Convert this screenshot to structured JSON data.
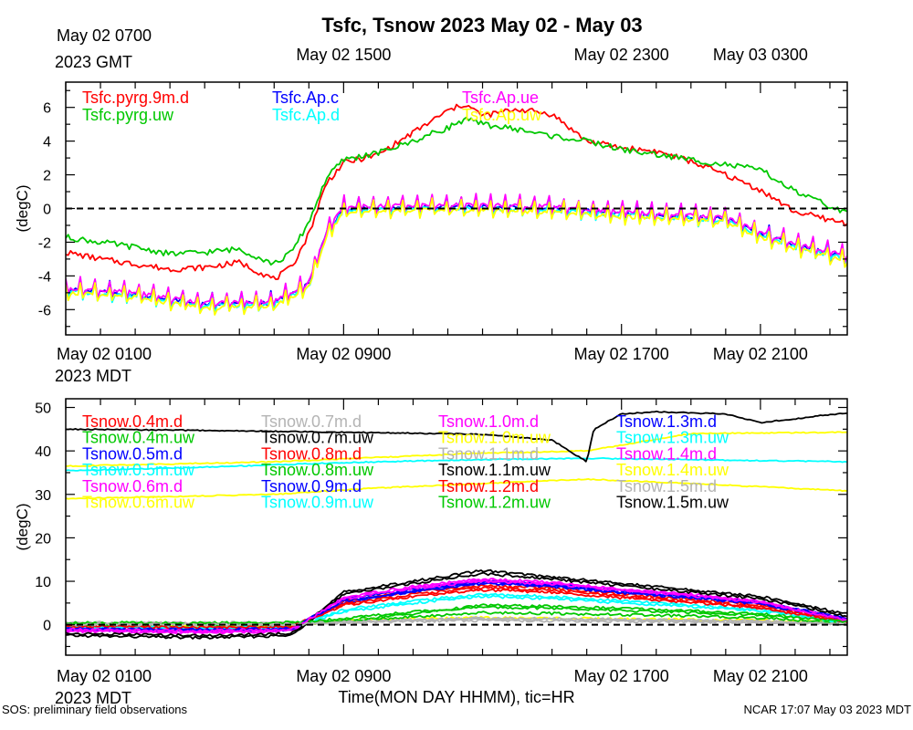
{
  "page": {
    "title": "Tsfc, Tsnow 2023 May 02 - May 03",
    "xlabel": "Time(MON DAY HHMM), tic=HR",
    "footer_left": "SOS: preliminary field observations",
    "footer_right": "NCAR 17:07 May 03 2023 MDT"
  },
  "chart_data": [
    {
      "type": "line",
      "name": "Tsfc panel",
      "ylabel": "(degC)",
      "ylim": [
        -7.5,
        7.5
      ],
      "yticks": [
        -6,
        -4,
        -2,
        0,
        2,
        4,
        6
      ],
      "xlim": [
        0,
        22.5
      ],
      "grid": false,
      "zero_line": true,
      "legend_position": "top",
      "top_axis_labels": [
        {
          "x": 0,
          "line1": "May 02 0700",
          "line2": "2023 GMT"
        },
        {
          "x": 8,
          "line1": "May 02 1500",
          "line2": ""
        },
        {
          "x": 16,
          "line1": "May 02 2300",
          "line2": ""
        },
        {
          "x": 20,
          "line1": "May 03 0300",
          "line2": ""
        }
      ],
      "bottom_axis_labels": [
        {
          "x": 0,
          "line1": "May 02 0100",
          "line2": "2023 MDT"
        },
        {
          "x": 8,
          "line1": "May 02 0900",
          "line2": ""
        },
        {
          "x": 16,
          "line1": "May 02 1700",
          "line2": ""
        },
        {
          "x": 20,
          "line1": "May 02 2100",
          "line2": ""
        }
      ],
      "series": [
        {
          "name": "Tsfc.pyrg.9m.d",
          "color": "#ff0000",
          "style": "solid",
          "x": [
            0,
            1,
            2,
            3,
            4,
            5,
            6,
            6.5,
            7,
            7.5,
            8,
            9,
            10,
            11,
            11.5,
            12,
            13,
            14,
            15,
            16,
            17,
            18,
            19,
            20,
            21,
            22.5
          ],
          "y": [
            -2.6,
            -3.0,
            -3.3,
            -3.6,
            -3.5,
            -3.2,
            -4.2,
            -3.5,
            -1.5,
            1.5,
            2.7,
            3.2,
            4.5,
            5.8,
            6.2,
            5.5,
            5.9,
            5.6,
            4.0,
            3.6,
            3.4,
            2.8,
            2.0,
            1.1,
            -0.2,
            -0.9
          ]
        },
        {
          "name": "Tsfc.pyrg.uw",
          "color": "#00c800",
          "style": "solid",
          "x": [
            0,
            1,
            2,
            3,
            4,
            5,
            6,
            6.5,
            7,
            7.5,
            8,
            9,
            10,
            11,
            11.5,
            12,
            13,
            14,
            15,
            16,
            17,
            18,
            19,
            20,
            21,
            22.5
          ],
          "y": [
            -1.7,
            -2.0,
            -2.3,
            -2.7,
            -2.6,
            -2.4,
            -3.3,
            -2.6,
            -0.8,
            1.8,
            2.9,
            3.3,
            4.0,
            4.8,
            5.3,
            5.0,
            4.7,
            4.3,
            4.0,
            3.5,
            3.2,
            2.9,
            2.6,
            2.3,
            1.0,
            -0.3
          ]
        },
        {
          "name": "Tsfc.Ap.c",
          "color": "#0000ff",
          "style": "jagged",
          "x": [
            0,
            2,
            4,
            6,
            7,
            7.5,
            8,
            10,
            12,
            14,
            16,
            18,
            19,
            20,
            21,
            22.5
          ],
          "y": [
            -4.8,
            -5.1,
            -5.7,
            -5.6,
            -4.5,
            -1.5,
            0.0,
            0.1,
            0.1,
            0.0,
            -0.3,
            -0.5,
            -0.6,
            -1.5,
            -2.2,
            -2.9
          ]
        },
        {
          "name": "Tsfc.Ap.d",
          "color": "#00ffff",
          "style": "jagged",
          "x": [
            0,
            2,
            4,
            6,
            7,
            7.5,
            8,
            10,
            12,
            14,
            16,
            18,
            19,
            20,
            21,
            22.5
          ],
          "y": [
            -4.9,
            -5.2,
            -5.8,
            -5.7,
            -4.6,
            -1.6,
            -0.1,
            0.0,
            0.0,
            -0.1,
            -0.4,
            -0.6,
            -0.7,
            -1.6,
            -2.3,
            -3.0
          ]
        },
        {
          "name": "Tsfc.Ap.ue",
          "color": "#ff00ff",
          "style": "jagged",
          "x": [
            0,
            2,
            4,
            6,
            7,
            7.5,
            8,
            10,
            12,
            14,
            16,
            18,
            19,
            20,
            21,
            22.5
          ],
          "y": [
            -4.7,
            -5.0,
            -5.6,
            -5.5,
            -4.4,
            -1.4,
            0.1,
            0.2,
            0.2,
            0.1,
            -0.2,
            -0.4,
            -0.5,
            -1.4,
            -2.1,
            -2.8
          ]
        },
        {
          "name": "Tsfc.Ap.uw",
          "color": "#ffff00",
          "style": "jagged",
          "x": [
            0,
            2,
            4,
            6,
            7,
            7.5,
            8,
            10,
            12,
            14,
            16,
            18,
            19,
            20,
            21,
            22.5
          ],
          "y": [
            -5.0,
            -5.3,
            -5.9,
            -5.8,
            -4.7,
            -1.7,
            -0.2,
            -0.1,
            -0.1,
            -0.2,
            -0.5,
            -0.7,
            -0.8,
            -1.7,
            -2.4,
            -3.1
          ]
        }
      ]
    },
    {
      "type": "line",
      "name": "Tsnow panel",
      "ylabel": "(degC)",
      "ylim": [
        -7,
        52
      ],
      "yticks": [
        0,
        10,
        20,
        30,
        40,
        50
      ],
      "xlim": [
        0,
        22.5
      ],
      "grid": false,
      "zero_line": true,
      "legend_position": "top",
      "bottom_axis_labels": [
        {
          "x": 0,
          "line1": "May 02 0100",
          "line2": "2023 MDT"
        },
        {
          "x": 8,
          "line1": "May 02 0900",
          "line2": ""
        },
        {
          "x": 16,
          "line1": "May 02 1700",
          "line2": ""
        },
        {
          "x": 20,
          "line1": "May 02 2100",
          "line2": ""
        }
      ],
      "series": [
        {
          "name": "Tsnow.0.4m.d",
          "color": "#ff0000",
          "x": [
            0,
            4,
            6.5,
            8,
            10,
            12,
            14,
            16,
            18,
            20,
            22.5
          ],
          "y": [
            -1.0,
            -1.2,
            -1.0,
            5.5,
            7.5,
            9.0,
            8.5,
            7.0,
            6.0,
            4.5,
            1.2
          ]
        },
        {
          "name": "Tsnow.0.4m.uw",
          "color": "#00c800",
          "x": [
            0,
            4,
            6.5,
            8,
            10,
            12,
            14,
            16,
            18,
            20,
            22.5
          ],
          "y": [
            -0.2,
            -0.3,
            -0.2,
            1.0,
            2.5,
            4.5,
            4.2,
            3.8,
            3.2,
            2.5,
            0.8
          ]
        },
        {
          "name": "Tsnow.0.5m.d",
          "color": "#0000ff",
          "x": [
            0,
            4,
            6.5,
            8,
            10,
            12,
            14,
            16,
            18,
            20,
            22.5
          ],
          "y": [
            -1.2,
            -1.4,
            -1.2,
            5.0,
            7.8,
            9.8,
            9.0,
            7.5,
            6.5,
            5.0,
            1.5
          ]
        },
        {
          "name": "Tsnow.0.5m.uw",
          "color": "#00ffff",
          "x": [
            0,
            4,
            6.5,
            8,
            10,
            12,
            14,
            16,
            18,
            20,
            22.5
          ],
          "y": [
            -0.8,
            -1.0,
            -0.8,
            3.5,
            5.5,
            7.0,
            6.5,
            5.5,
            4.5,
            3.5,
            0.6
          ]
        },
        {
          "name": "Tsnow.0.6m.d",
          "color": "#ff00ff",
          "x": [
            0,
            4,
            6.5,
            8,
            10,
            12,
            14,
            16,
            18,
            20,
            22.5
          ],
          "y": [
            -1.5,
            -1.8,
            -1.5,
            5.8,
            8.5,
            10.2,
            9.5,
            8.0,
            6.8,
            5.2,
            1.0
          ]
        },
        {
          "name": "Tsnow.0.6m.uw",
          "color": "#ffff00",
          "x": [
            0,
            4,
            6.5,
            8,
            10,
            12,
            14,
            16,
            18,
            20,
            22.5
          ],
          "y": [
            -0.3,
            -0.4,
            -0.3,
            1.0,
            1.4,
            1.6,
            1.5,
            1.3,
            1.2,
            1.0,
            0.5
          ]
        },
        {
          "name": "Tsnow.0.7m.d",
          "color": "#b4b4b4",
          "x": [
            0,
            4,
            6.5,
            8,
            10,
            12,
            14,
            16,
            18,
            20,
            22.5
          ],
          "y": [
            0.5,
            0.4,
            0.5,
            0.8,
            1.2,
            1.5,
            1.4,
            1.2,
            1.0,
            0.8,
            0.3
          ]
        },
        {
          "name": "Tsnow.0.7m.uw",
          "color": "#000000",
          "x": [
            0,
            4,
            6.5,
            8,
            10,
            12,
            14,
            16,
            18,
            20,
            22.5
          ],
          "y": [
            -2.5,
            -3.0,
            -2.5,
            7.5,
            10.0,
            12.5,
            11.0,
            9.5,
            8.0,
            6.5,
            2.5
          ]
        },
        {
          "name": "Tsnow.0.8m.d",
          "color": "#ff0000",
          "x": [
            0,
            4,
            6.5,
            8,
            10,
            12,
            14,
            16,
            18,
            20,
            22.5
          ],
          "y": [
            -0.6,
            -0.8,
            -0.6,
            4.8,
            7.0,
            8.5,
            8.0,
            6.5,
            5.5,
            4.0,
            0.9
          ]
        },
        {
          "name": "Tsnow.0.8m.uw",
          "color": "#00c800",
          "x": [
            0,
            4,
            6.5,
            8,
            10,
            12,
            14,
            16,
            18,
            20,
            22.5
          ],
          "y": [
            0.2,
            0.1,
            0.2,
            0.9,
            1.8,
            2.8,
            2.6,
            2.3,
            2.0,
            1.6,
            0.4
          ]
        },
        {
          "name": "Tsnow.0.9m.d",
          "color": "#0000ff",
          "x": [
            0,
            4,
            6.5,
            8,
            10,
            12,
            14,
            16,
            18,
            20,
            22.5
          ],
          "y": [
            -1.0,
            -1.2,
            -1.0,
            6.0,
            8.0,
            10.0,
            9.2,
            7.8,
            6.6,
            5.0,
            1.3
          ]
        },
        {
          "name": "Tsnow.0.9m.uw",
          "color": "#00ffff",
          "x": [
            0,
            4,
            6.5,
            8,
            10,
            12,
            14,
            16,
            18,
            20,
            22.5
          ],
          "y": [
            -0.5,
            -0.6,
            -0.5,
            3.0,
            5.0,
            6.5,
            6.0,
            5.0,
            4.2,
            3.2,
            0.5
          ]
        },
        {
          "name": "Tsnow.1.0m.d",
          "color": "#ff00ff",
          "x": [
            0,
            4,
            6.5,
            8,
            10,
            12,
            14,
            16,
            18,
            20,
            22.5
          ],
          "y": [
            -1.3,
            -1.6,
            -1.3,
            6.3,
            8.8,
            10.5,
            9.8,
            8.2,
            7.0,
            5.4,
            1.1
          ]
        },
        {
          "name": "Tsnow.1.0m.uw",
          "color": "#ffff00",
          "x": [
            0,
            3,
            6,
            9,
            12,
            15,
            18,
            22.5
          ],
          "y": [
            29.0,
            29.5,
            30.0,
            31.5,
            32.5,
            33.5,
            32.5,
            30.8
          ]
        },
        {
          "name": "Tsnow.1.1m.d",
          "color": "#b4b4b4",
          "x": [
            0,
            4,
            6.5,
            8,
            10,
            12,
            14,
            16,
            18,
            20,
            22.5
          ],
          "y": [
            0.3,
            0.2,
            0.3,
            0.6,
            1.0,
            1.3,
            1.2,
            1.0,
            0.8,
            0.6,
            0.2
          ]
        },
        {
          "name": "Tsnow.1.1m.uw",
          "color": "#000000",
          "x": [
            0,
            4,
            6.5,
            8,
            10,
            12,
            14,
            16,
            18,
            20,
            22.5
          ],
          "y": [
            -2.0,
            -2.5,
            -2.0,
            7.0,
            9.5,
            11.8,
            10.5,
            9.0,
            7.5,
            6.0,
            2.0
          ]
        },
        {
          "name": "Tsnow.1.2m.d",
          "color": "#ff0000",
          "x": [
            0,
            4,
            6.5,
            8,
            10,
            12,
            14,
            16,
            18,
            20,
            22.5
          ],
          "y": [
            -0.4,
            -0.6,
            -0.4,
            4.5,
            6.5,
            8.0,
            7.5,
            6.2,
            5.2,
            3.8,
            0.8
          ]
        },
        {
          "name": "Tsnow.1.2m.uw",
          "color": "#00c800",
          "x": [
            0,
            4,
            6.5,
            8,
            10,
            12,
            14,
            16,
            18,
            20,
            22.5
          ],
          "y": [
            0.5,
            0.4,
            0.5,
            1.5,
            3.0,
            4.0,
            3.8,
            3.3,
            2.8,
            2.2,
            0.7
          ]
        },
        {
          "name": "Tsnow.1.3m.d",
          "color": "#0000ff",
          "x": [
            0,
            4,
            6.5,
            8,
            10,
            12,
            14,
            16,
            18,
            20,
            22.5
          ],
          "y": [
            -0.9,
            -1.1,
            -0.9,
            5.5,
            7.6,
            9.5,
            8.8,
            7.4,
            6.2,
            4.8,
            1.2
          ]
        },
        {
          "name": "Tsnow.1.3m.uw",
          "color": "#00ffff",
          "x": [
            0,
            3,
            6,
            9,
            12,
            15,
            18,
            22.5
          ],
          "y": [
            35.5,
            36.0,
            36.8,
            37.5,
            38.0,
            38.3,
            38.0,
            37.5
          ]
        },
        {
          "name": "Tsnow.1.4m.d",
          "color": "#ff00ff",
          "x": [
            0,
            4,
            6.5,
            8,
            10,
            12,
            14,
            16,
            18,
            20,
            22.5
          ],
          "y": [
            -1.1,
            -1.4,
            -1.1,
            6.0,
            8.4,
            10.0,
            9.4,
            7.9,
            6.7,
            5.2,
            1.0
          ]
        },
        {
          "name": "Tsnow.1.4m.uw",
          "color": "#ffff00",
          "x": [
            0,
            3,
            6,
            9,
            12,
            15,
            16.5,
            18,
            22.5
          ],
          "y": [
            36.5,
            37.0,
            37.5,
            38.5,
            39.5,
            40.0,
            42.0,
            44.0,
            44.3
          ]
        },
        {
          "name": "Tsnow.1.5m.d",
          "color": "#b4b4b4",
          "x": [
            0,
            4,
            6.5,
            8,
            10,
            12,
            14,
            16,
            18,
            20,
            22.5
          ],
          "y": [
            0.1,
            0.0,
            0.1,
            0.4,
            0.8,
            1.0,
            0.9,
            0.8,
            0.6,
            0.5,
            0.1
          ]
        },
        {
          "name": "Tsnow.1.5m.uw",
          "color": "#000000",
          "x": [
            0,
            3,
            6,
            9,
            12,
            14,
            14.5,
            15,
            15.2,
            16,
            17,
            19,
            20,
            22.5
          ],
          "y": [
            45.0,
            44.8,
            44.5,
            44.2,
            43.8,
            42.5,
            40.0,
            37.5,
            45.0,
            48.5,
            49.0,
            48.5,
            46.5,
            48.8
          ]
        }
      ]
    }
  ]
}
